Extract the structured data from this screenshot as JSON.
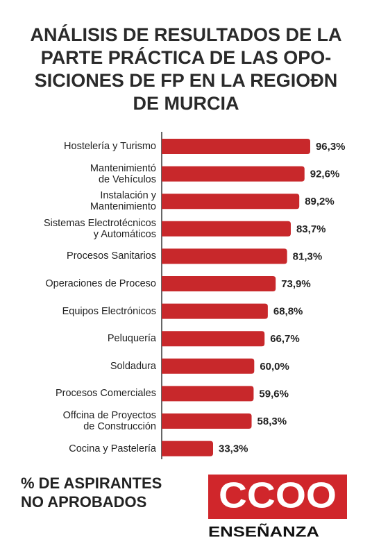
{
  "chart_data": {
    "type": "bar",
    "orientation": "horizontal",
    "title": [
      "ANÁLISIS DE RESULTADOS DE LA",
      "PARTE PRÁCTICA DE LAS OPO-",
      "SICIONES DE FP EN LA REGIOÐN",
      "DE MURCIA"
    ],
    "categories": [
      "Hostelería y Turismo",
      "Mantenimientó\nde Vehículos",
      "Instalación y\nMantenimiento",
      "Sistemas Electrotécnicos\ny Automáticos",
      "Procesos Sanitarios",
      "Operaciones de Proceso",
      "Equipos Electrónicos",
      "Peluquería",
      "Soldadura",
      "Procesos Comerciales",
      "Offcina de Proyectos\nde Construcción",
      "Cocina y Pastelería"
    ],
    "values": [
      96.3,
      92.6,
      89.2,
      83.7,
      81.3,
      73.9,
      68.8,
      66.7,
      60.0,
      59.6,
      58.3,
      33.3
    ],
    "value_labels": [
      "96,3%",
      "92,6%",
      "89,2%",
      "83,7%",
      "81,3%",
      "73,9%",
      "68,8%",
      "66,7%",
      "60,0%",
      "59,6%",
      "58,3%",
      "33,3%"
    ],
    "color": "#c8282b",
    "note": "% DE ASPIRANTES\nNO APROBADOS"
  },
  "logo": {
    "mark": "CCOO",
    "name": "ENSEÑANZA",
    "color": "#d0262b"
  }
}
